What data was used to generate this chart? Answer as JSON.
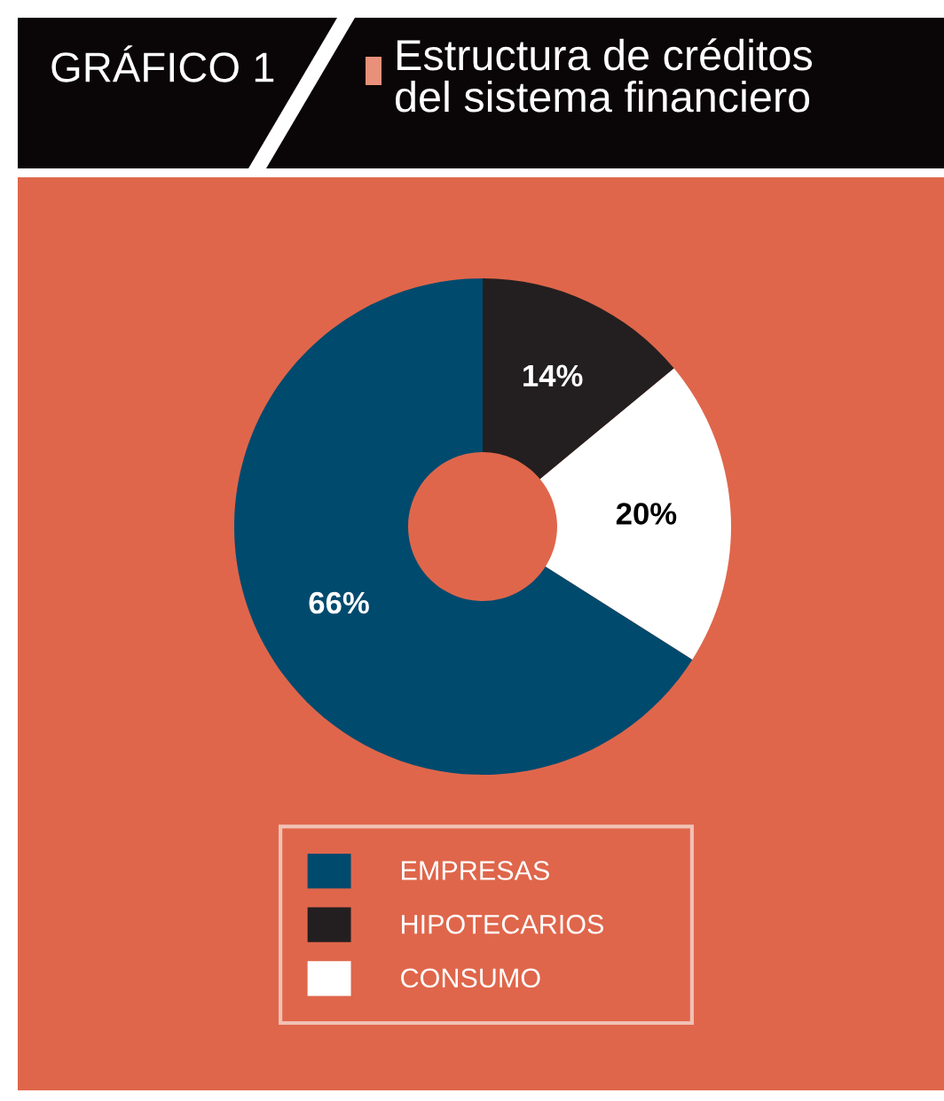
{
  "chart_data": {
    "type": "donut",
    "title": "Estructura de créditos\ndel sistema financiero",
    "annotations": [
      "GRÁFICO 1"
    ],
    "categories": [
      "EMPRESAS",
      "HIPOTECARIOS",
      "CONSUMO"
    ],
    "values": [
      66,
      14,
      20
    ],
    "colors": [
      "#004a6e",
      "#231f20",
      "#ffffff"
    ],
    "value_labels": [
      "66%",
      "14%",
      "20%"
    ],
    "legend": "bottom"
  }
}
